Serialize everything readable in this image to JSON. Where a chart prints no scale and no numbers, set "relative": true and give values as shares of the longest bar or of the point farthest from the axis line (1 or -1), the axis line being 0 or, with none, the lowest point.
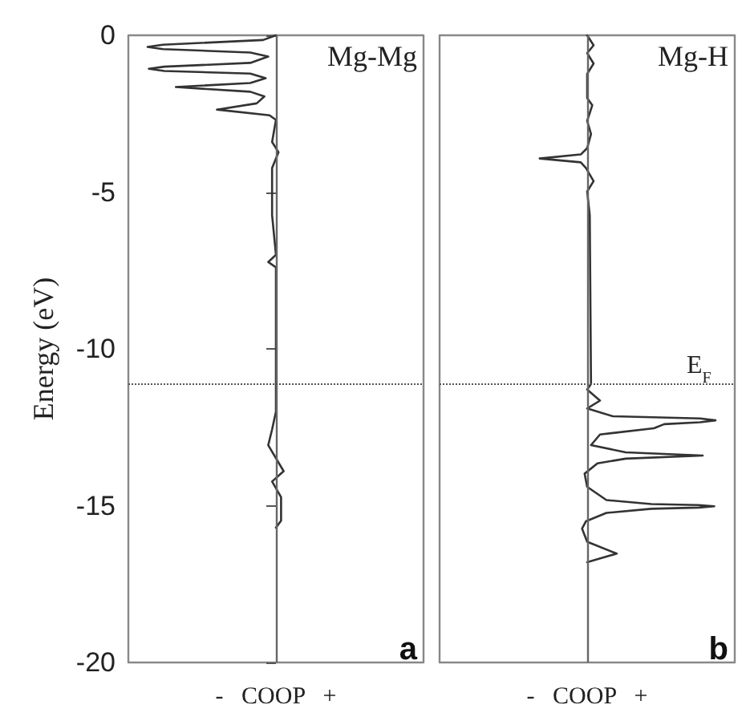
{
  "chart_data": [
    {
      "type": "line",
      "orientation": "horizontal",
      "relative": true,
      "ylabel": "Energy (eV)",
      "xlabel": "-   COOP   +",
      "ylim": [
        -20,
        0
      ],
      "yticks": [
        -20,
        -15,
        -10,
        -5,
        0
      ],
      "tick_labels": "y",
      "annotations": [
        "Mg-Mg",
        "a"
      ],
      "ref_lines": [
        {
          "axis": "y",
          "value": -11.1,
          "line_style": "dotted",
          "color": "#555555"
        }
      ],
      "line_style": "solid",
      "marker": "none",
      "series": [
        {
          "color": "#333333",
          "x": [
            0,
            -0.15,
            -0.3,
            -0.37,
            -0.44,
            -0.55,
            -0.68,
            -0.88,
            -1.0,
            -1.07,
            -1.14,
            -1.22,
            -1.37,
            -1.52,
            -1.65,
            -1.8,
            -1.95,
            -2.17,
            -2.37,
            -2.55,
            -2.7,
            -3.4,
            -3.73,
            -4.23,
            -5.73,
            -7.0,
            -7.23,
            -7.4,
            -12.0,
            -12.57,
            -13.07,
            -13.9,
            -14.23,
            -14.73,
            -15.48,
            -15.7
          ],
          "values": [
            0,
            -0.1,
            -0.88,
            -1,
            -0.88,
            -0.2,
            -0.06,
            -0.2,
            -0.87,
            -0.99,
            -0.87,
            -0.2,
            -0.08,
            -0.2,
            -0.78,
            -0.2,
            -0.09,
            -0.15,
            -0.46,
            -0.05,
            0,
            -0.03,
            0.02,
            -0.03,
            -0.03,
            0,
            -0.06,
            0,
            0,
            -0.03,
            -0.06,
            0.06,
            -0.03,
            0.04,
            0.04,
            0
          ]
        }
      ]
    },
    {
      "type": "line",
      "orientation": "horizontal",
      "relative": true,
      "xlabel": "-   COOP   +",
      "ylim": [
        -20,
        0
      ],
      "yticks": [
        -20,
        -15,
        -10,
        -5,
        0
      ],
      "tick_labels": false,
      "annotations": [
        "Mg-H",
        "b"
      ],
      "ref_lines": [
        {
          "axis": "y",
          "value": -11.1,
          "label": "E$_{F}$",
          "line_style": "dotted",
          "color": "#555555"
        }
      ],
      "line_style": "solid",
      "marker": "none",
      "series": [
        {
          "color": "#333333",
          "x": [
            0,
            -0.32,
            -0.57,
            -0.9,
            -1.23,
            -2.0,
            -2.23,
            -2.73,
            -3.15,
            -3.6,
            -3.8,
            -3.93,
            -4.05,
            -4.23,
            -4.65,
            -4.98,
            -5.73,
            -11.12,
            -11.3,
            -11.65,
            -11.9,
            -12.15,
            -12.22,
            -12.28,
            -12.34,
            -12.4,
            -12.53,
            -12.73,
            -13.07,
            -13.3,
            -13.4,
            -13.5,
            -13.65,
            -13.98,
            -14.4,
            -14.82,
            -14.95,
            -14.98,
            -15.02,
            -15.06,
            -15.1,
            -15.23,
            -15.5,
            -15.73,
            -16.15,
            -16.53,
            -16.8
          ],
          "values": [
            0,
            0.05,
            0,
            0.05,
            0,
            0,
            0.04,
            0,
            0.03,
            0,
            -0.05,
            -0.37,
            -0.05,
            -0.01,
            0.05,
            0,
            0.02,
            0.03,
            0,
            0.1,
            0,
            0.2,
            0.88,
            1,
            0.88,
            0.6,
            0.52,
            0.1,
            0.03,
            0.3,
            0.9,
            0.3,
            0.08,
            -0.02,
            0,
            0.15,
            0.5,
            0.87,
            0.99,
            0.87,
            0.5,
            0.15,
            -0.01,
            -0.04,
            0,
            0.23,
            0
          ]
        }
      ]
    }
  ]
}
